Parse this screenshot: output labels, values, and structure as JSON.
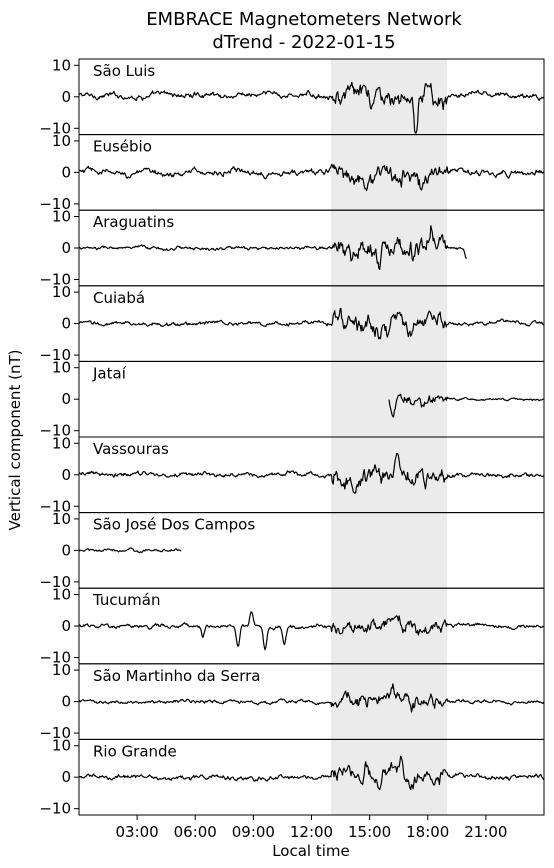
{
  "chart_data": {
    "type": "line",
    "title": "EMBRACE Magnetometers Network",
    "subtitle": "dTrend - 2022-01-15",
    "xlabel": "Local time",
    "ylabel": "Vertical component (nT)",
    "x_unit": "hours (local time)",
    "xlim": [
      0,
      24
    ],
    "ylim": [
      -12,
      12
    ],
    "x_ticks": [
      {
        "value": 3,
        "label": "03:00"
      },
      {
        "value": 6,
        "label": "06:00"
      },
      {
        "value": 9,
        "label": "09:00"
      },
      {
        "value": 12,
        "label": "12:00"
      },
      {
        "value": 15,
        "label": "15:00"
      },
      {
        "value": 18,
        "label": "18:00"
      },
      {
        "value": 21,
        "label": "21:00"
      }
    ],
    "y_ticks": [
      {
        "value": 10,
        "label": "10"
      },
      {
        "value": 0,
        "label": "0"
      },
      {
        "value": -10,
        "label": "−10"
      }
    ],
    "highlight_band": {
      "x_start": 13,
      "x_end": 19,
      "color": "#ebebeb"
    },
    "line_color": "#000000",
    "grid": false,
    "series": [
      {
        "name": "São Luis",
        "x_start": 0,
        "x_end": 24,
        "baseline": 0.4,
        "amp": 1.0,
        "storm_amp": 3.0,
        "spikes": [
          {
            "x": 17.4,
            "y": -11.5
          },
          {
            "x": 17.9,
            "y": 4.5
          },
          {
            "x": 18.1,
            "y": 5.0
          },
          {
            "x": 15.1,
            "y": -4.5
          }
        ]
      },
      {
        "name": "Eusébio",
        "x_start": 0,
        "x_end": 24,
        "baseline": 0.0,
        "amp": 1.1,
        "storm_amp": 3.0,
        "spikes": [
          {
            "x": 17.7,
            "y": -6.0
          },
          {
            "x": 16.6,
            "y": -3.5
          }
        ]
      },
      {
        "name": "Araguatins",
        "x_start": 0,
        "x_end": 20,
        "baseline": 0.0,
        "amp": 0.6,
        "storm_amp": 3.5,
        "spikes": [
          {
            "x": 15.5,
            "y": -6.5
          },
          {
            "x": 18.2,
            "y": 4.5
          },
          {
            "x": 20.0,
            "y": -3.5
          }
        ]
      },
      {
        "name": "Cuiabá",
        "x_start": 0,
        "x_end": 24,
        "baseline": 0.0,
        "amp": 0.7,
        "storm_amp": 3.5,
        "spikes": [
          {
            "x": 15.5,
            "y": -6.0
          },
          {
            "x": 16.0,
            "y": -4.5
          }
        ]
      },
      {
        "name": "Jataí",
        "x_start": 16.0,
        "x_end": 24,
        "baseline": 0.0,
        "amp": 0.4,
        "storm_amp": 2.0,
        "spikes": [
          {
            "x": 16.2,
            "y": -4.5
          },
          {
            "x": 16.0,
            "y": 0.0
          }
        ]
      },
      {
        "name": "Vassouras",
        "x_start": 0,
        "x_end": 24,
        "baseline": 0.0,
        "amp": 0.8,
        "storm_amp": 3.2,
        "spikes": [
          {
            "x": 17.3,
            "y": -5.0
          },
          {
            "x": 15.3,
            "y": 4.5
          },
          {
            "x": 16.4,
            "y": 5.0
          }
        ]
      },
      {
        "name": "São José Dos Campos",
        "x_start": 0,
        "x_end": 5.3,
        "baseline": 0.0,
        "amp": 0.5,
        "storm_amp": 0.5,
        "spikes": [
          {
            "x": 2.7,
            "y": 0.9
          }
        ]
      },
      {
        "name": "Tucumán",
        "x_start": 0,
        "x_end": 24,
        "baseline": 0.0,
        "amp": 0.7,
        "storm_amp": 2.5,
        "spikes": [
          {
            "x": 8.2,
            "y": -7.0
          },
          {
            "x": 8.9,
            "y": 4.5
          },
          {
            "x": 9.6,
            "y": -7.0
          },
          {
            "x": 10.6,
            "y": -6.0
          },
          {
            "x": 6.4,
            "y": -3.0
          }
        ]
      },
      {
        "name": "São Martinho da Serra",
        "x_start": 0,
        "x_end": 24,
        "baseline": 0.0,
        "amp": 0.6,
        "storm_amp": 2.5,
        "spikes": [
          {
            "x": 16.2,
            "y": 5.0
          },
          {
            "x": 17.2,
            "y": -3.0
          }
        ]
      },
      {
        "name": "Rio Grande",
        "x_start": 0,
        "x_end": 24,
        "baseline": 0.0,
        "amp": 0.8,
        "storm_amp": 2.8,
        "spikes": [
          {
            "x": 14.8,
            "y": 4.5
          },
          {
            "x": 15.5,
            "y": -5.5
          },
          {
            "x": 16.6,
            "y": 4.0
          }
        ]
      }
    ]
  }
}
